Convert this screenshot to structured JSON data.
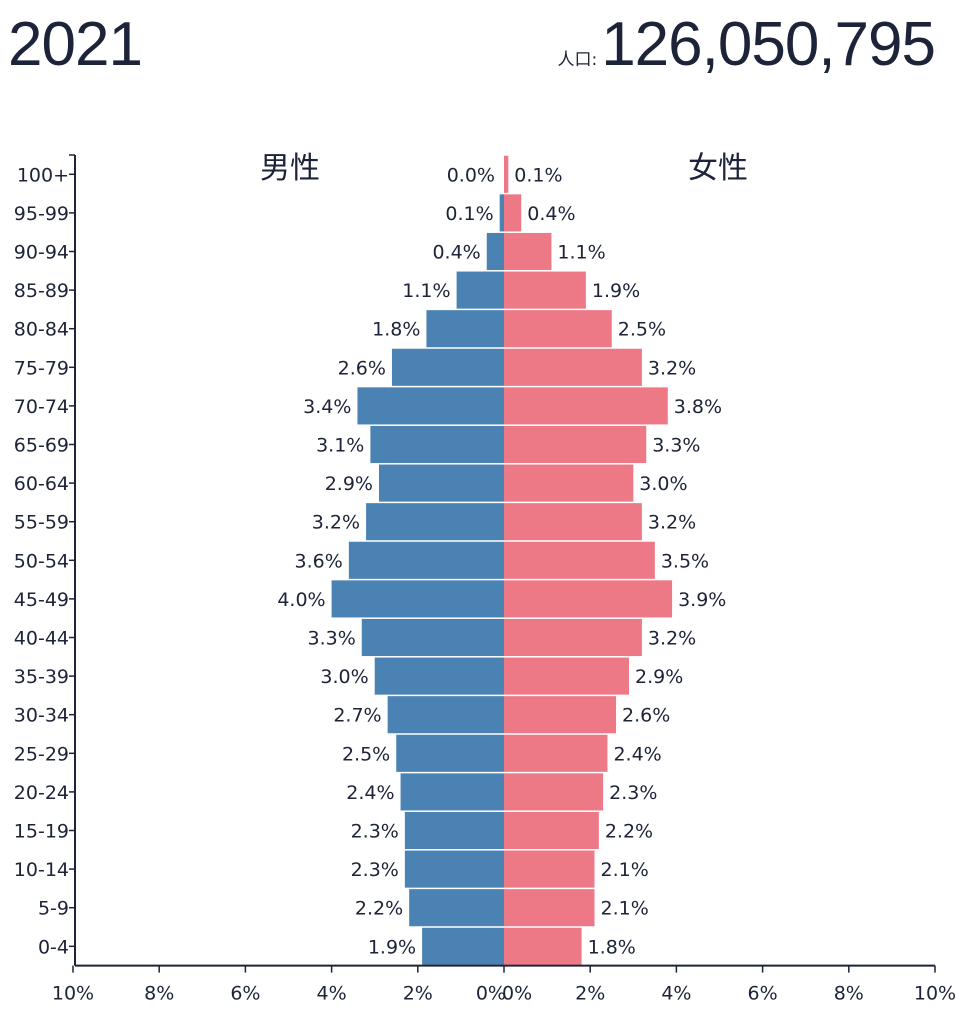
{
  "header": {
    "year": "2021",
    "population_label": "人口:",
    "population_value": "126,050,795"
  },
  "chart_data": {
    "type": "bar",
    "orientation": "horizontal-population-pyramid",
    "categories": [
      "100+",
      "95-99",
      "90-94",
      "85-89",
      "80-84",
      "75-79",
      "70-74",
      "65-69",
      "60-64",
      "55-59",
      "50-54",
      "45-49",
      "40-44",
      "35-39",
      "30-34",
      "25-29",
      "20-24",
      "15-19",
      "10-14",
      "5-9",
      "0-4"
    ],
    "series": [
      {
        "name": "男性",
        "color": "#4a82b4",
        "values": [
          0.0,
          0.1,
          0.4,
          1.1,
          1.8,
          2.6,
          3.4,
          3.1,
          2.9,
          3.2,
          3.6,
          4.0,
          3.3,
          3.0,
          2.7,
          2.5,
          2.4,
          2.3,
          2.3,
          2.2,
          1.9
        ],
        "labels": [
          "0.0%",
          "0.1%",
          "0.4%",
          "1.1%",
          "1.8%",
          "2.6%",
          "3.4%",
          "3.1%",
          "2.9%",
          "3.2%",
          "3.6%",
          "4.0%",
          "3.3%",
          "3.0%",
          "2.7%",
          "2.5%",
          "2.4%",
          "2.3%",
          "2.3%",
          "2.2%",
          "1.9%"
        ]
      },
      {
        "name": "女性",
        "color": "#ee7986",
        "values": [
          0.1,
          0.4,
          1.1,
          1.9,
          2.5,
          3.2,
          3.8,
          3.3,
          3.0,
          3.2,
          3.5,
          3.9,
          3.2,
          2.9,
          2.6,
          2.4,
          2.3,
          2.2,
          2.1,
          2.1,
          1.8
        ],
        "labels": [
          "0.1%",
          "0.4%",
          "1.1%",
          "1.9%",
          "2.5%",
          "3.2%",
          "3.8%",
          "3.3%",
          "3.0%",
          "3.2%",
          "3.5%",
          "3.9%",
          "3.2%",
          "2.9%",
          "2.6%",
          "2.4%",
          "2.3%",
          "2.2%",
          "2.1%",
          "2.1%",
          "1.8%"
        ]
      }
    ],
    "xlim": [
      -10,
      10
    ],
    "x_ticks": [
      "10%",
      "8%",
      "6%",
      "4%",
      "2%",
      "0%",
      "0%",
      "2%",
      "4%",
      "6%",
      "8%",
      "10%"
    ],
    "grid": false
  }
}
